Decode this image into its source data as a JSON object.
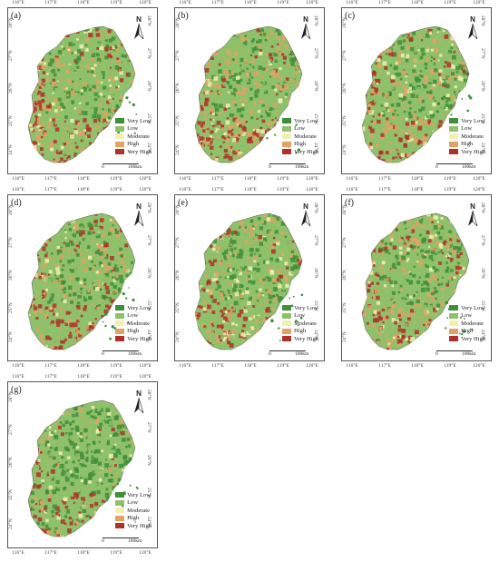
{
  "panels": [
    {
      "label": "(a)",
      "palette": "a"
    },
    {
      "label": "(b)",
      "palette": "a"
    },
    {
      "label": "(c)",
      "palette": "b"
    },
    {
      "label": "(d)",
      "palette": "b"
    },
    {
      "label": "(e)",
      "palette": "b"
    },
    {
      "label": "(f)",
      "palette": "b"
    },
    {
      "label": "(g)",
      "palette": "c"
    }
  ],
  "lon_ticks": [
    "116°E",
    "117°E",
    "118°E",
    "119°E",
    "120°E"
  ],
  "lat_ticks": [
    "28°N",
    "27°N",
    "26°N",
    "25°N",
    "24°N"
  ],
  "north_label": "N",
  "legend": {
    "items": [
      {
        "label": "Very Low",
        "color": "#3f8f3a"
      },
      {
        "label": "Low",
        "color": "#8fc06a"
      },
      {
        "label": "Moderate",
        "color": "#f2f0b0"
      },
      {
        "label": "High",
        "color": "#e2a263"
      },
      {
        "label": "Very High",
        "color": "#b0302a"
      }
    ]
  },
  "scale": {
    "start": "0",
    "end": "100km"
  }
}
